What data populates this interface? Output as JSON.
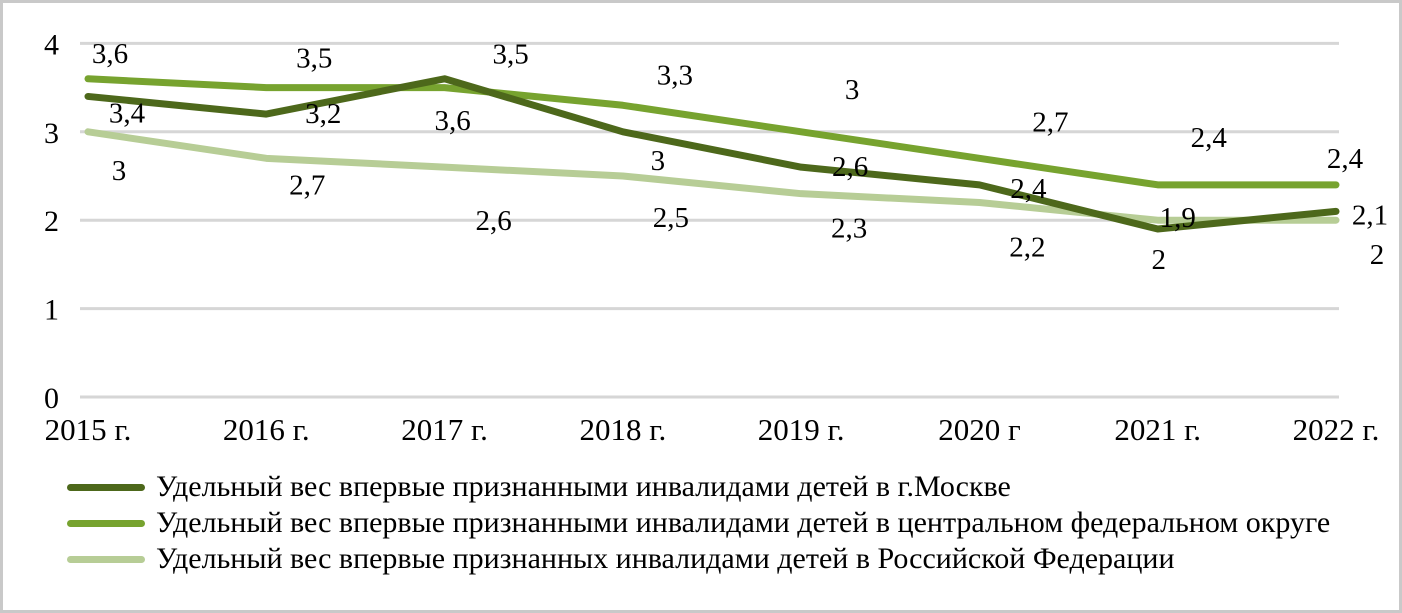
{
  "chart_data": {
    "type": "line",
    "title": "",
    "xlabel": "",
    "ylabel": "",
    "categories": [
      "2015 г.",
      "2016 г.",
      "2017 г.",
      "2018 г.",
      "2019 г.",
      "2020 г",
      "2021 г.",
      "2022 г."
    ],
    "y_ticks": [
      0,
      1,
      2,
      3,
      4
    ],
    "y_tick_labels": [
      "0",
      "1",
      "2",
      "3",
      "4"
    ],
    "ylim": [
      0,
      4
    ],
    "grid": true,
    "legend_position": "bottom-left",
    "series": [
      {
        "name": "Удельный вес впервые признанными инвалидами детей в г.Москве",
        "color": "#4d681b",
        "values": [
          3.4,
          3.2,
          3.6,
          3.0,
          2.6,
          2.4,
          1.9,
          2.1
        ],
        "labels": [
          "3,4",
          "3,2",
          "3,6",
          "3",
          "2,6",
          "2,4",
          "1,9",
          "2,1"
        ],
        "label_offsets": [
          [
            39,
            26
          ],
          [
            57,
            9
          ],
          [
            8,
            51
          ],
          [
            35,
            38
          ],
          [
            49,
            9
          ],
          [
            49,
            13
          ],
          [
            20,
            -2
          ],
          [
            34,
            13
          ]
        ]
      },
      {
        "name": "Удельный вес впервые признанными инвалидами детей в центральном федеральном округе",
        "color": "#77a32f",
        "values": [
          3.6,
          3.5,
          3.5,
          3.3,
          3.0,
          2.7,
          2.4,
          2.4
        ],
        "labels": [
          "3,6",
          "3,5",
          "3,5",
          "3,3",
          "3",
          "2,7",
          "2,4",
          "2,4"
        ],
        "label_offsets": [
          [
            22,
            -16
          ],
          [
            48,
            -20
          ],
          [
            66,
            -24
          ],
          [
            52,
            -21
          ],
          [
            51,
            -33
          ],
          [
            71,
            -27
          ],
          [
            51,
            -38
          ],
          [
            9,
            -17
          ]
        ]
      },
      {
        "name": "Удельный вес впервые признанных инвалидами детей в Российской Федерации",
        "color": "#b7cd96",
        "values": [
          3.0,
          2.7,
          2.6,
          2.5,
          2.3,
          2.2,
          2.0,
          2.0
        ],
        "labels": [
          "3",
          "2,7",
          "2,6",
          "2,5",
          "2,3",
          "2,2",
          "2",
          "2"
        ],
        "label_offsets": [
          [
            31,
            48
          ],
          [
            41,
            36
          ],
          [
            49,
            63
          ],
          [
            48,
            51
          ],
          [
            48,
            44
          ],
          [
            48,
            54
          ],
          [
            1,
            49
          ],
          [
            41,
            44
          ]
        ]
      }
    ]
  },
  "colors": {
    "grid": "#d6d6d6",
    "text": "#000000",
    "border": "#c9c9c9",
    "background": "#ffffff"
  }
}
